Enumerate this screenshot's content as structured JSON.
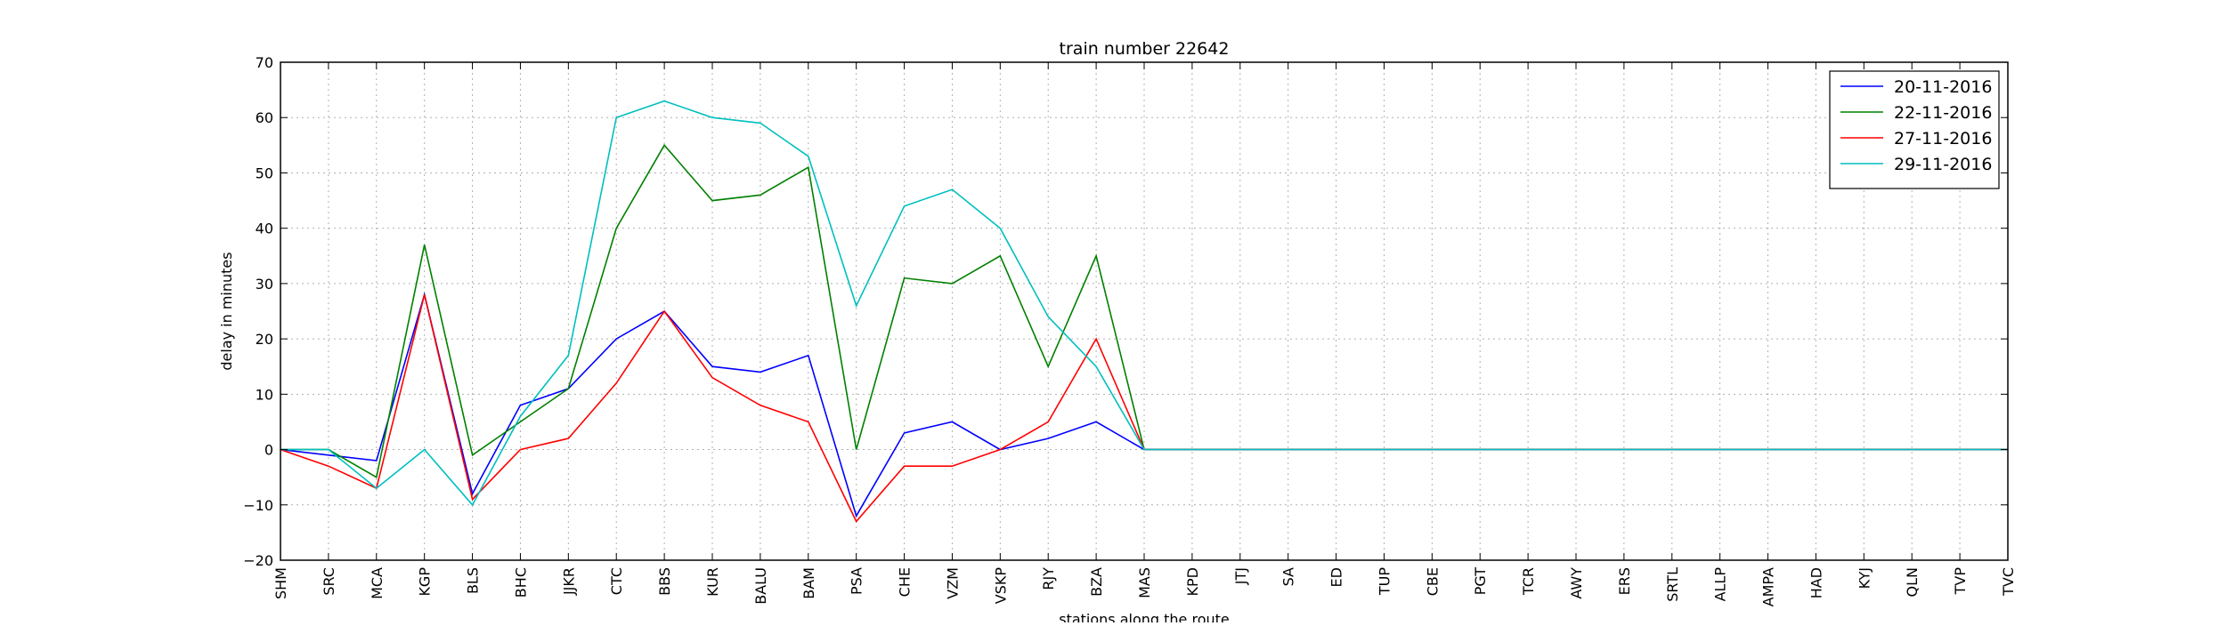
{
  "chart_data": {
    "type": "line",
    "title": "train number 22642",
    "xlabel": "stations along the route",
    "ylabel": "delay in minutes",
    "ylim": [
      -20,
      70
    ],
    "yticks": [
      -20,
      -10,
      0,
      10,
      20,
      30,
      40,
      50,
      60,
      70
    ],
    "grid": true,
    "legend_position": "top-right",
    "categories": [
      "SHM",
      "SRC",
      "MCA",
      "KGP",
      "BLS",
      "BHC",
      "JJKR",
      "CTC",
      "BBS",
      "KUR",
      "BALU",
      "BAM",
      "PSA",
      "CHE",
      "VZM",
      "VSKP",
      "RJY",
      "BZA",
      "MAS",
      "KPD",
      "JTJ",
      "SA",
      "ED",
      "TUP",
      "CBE",
      "PGT",
      "TCR",
      "AWY",
      "ERS",
      "SRTL",
      "ALLP",
      "AMPA",
      "HAD",
      "KYJ",
      "QLN",
      "TVP",
      "TVC"
    ],
    "series": [
      {
        "name": "20-11-2016",
        "color": "#0000ff",
        "values": [
          0,
          -1,
          -2,
          28,
          -8,
          8,
          11,
          20,
          25,
          15,
          14,
          17,
          -12,
          3,
          5,
          0,
          2,
          5,
          0,
          0,
          0,
          0,
          0,
          0,
          0,
          0,
          0,
          0,
          0,
          0,
          0,
          0,
          0,
          0,
          0,
          0,
          0
        ]
      },
      {
        "name": "22-11-2016",
        "color": "#008000",
        "values": [
          0,
          0,
          -5,
          37,
          -1,
          5,
          11,
          40,
          55,
          45,
          46,
          51,
          0,
          31,
          30,
          35,
          15,
          35,
          0,
          0,
          0,
          0,
          0,
          0,
          0,
          0,
          0,
          0,
          0,
          0,
          0,
          0,
          0,
          0,
          0,
          0,
          0
        ]
      },
      {
        "name": "27-11-2016",
        "color": "#ff0000",
        "values": [
          0,
          -3,
          -7,
          28,
          -9,
          0,
          2,
          12,
          25,
          13,
          8,
          5,
          -13,
          -3,
          -3,
          0,
          5,
          20,
          0,
          0,
          0,
          0,
          0,
          0,
          0,
          0,
          0,
          0,
          0,
          0,
          0,
          0,
          0,
          0,
          0,
          0,
          0
        ]
      },
      {
        "name": "29-11-2016",
        "color": "#00bfbf",
        "values": [
          0,
          0,
          -7,
          0,
          -10,
          6,
          17,
          60,
          63,
          60,
          59,
          53,
          26,
          44,
          47,
          40,
          24,
          15,
          0,
          0,
          0,
          0,
          0,
          0,
          0,
          0,
          0,
          0,
          0,
          0,
          0,
          0,
          0,
          0,
          0,
          0,
          0
        ]
      }
    ]
  }
}
